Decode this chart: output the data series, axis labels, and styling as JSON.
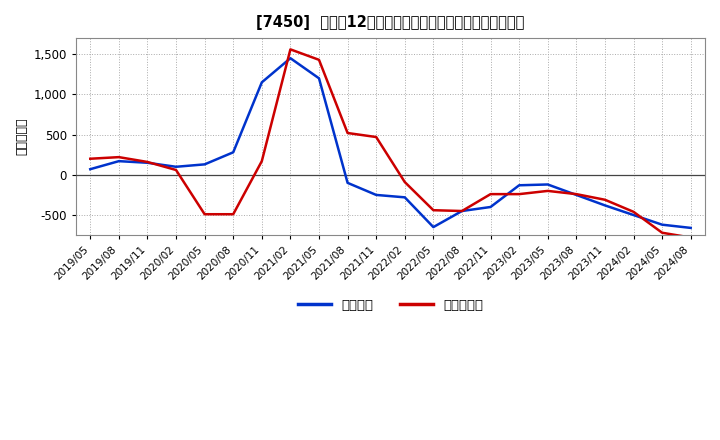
{
  "title_plain": "[7450]  利益の12か月移動合計の対前年同期増減額の推移",
  "ylabel": "（百万円）",
  "background_color": "#ffffff",
  "plot_bg_color": "#ffffff",
  "grid_color": "#aaaaaa",
  "x_labels": [
    "2019/05",
    "2019/08",
    "2019/11",
    "2020/02",
    "2020/05",
    "2020/08",
    "2020/11",
    "2021/02",
    "2021/05",
    "2021/08",
    "2021/11",
    "2022/02",
    "2022/05",
    "2022/08",
    "2022/11",
    "2023/02",
    "2023/05",
    "2023/08",
    "2023/11",
    "2024/02",
    "2024/05",
    "2024/08"
  ],
  "series_blue": {
    "label": "経常利益",
    "color": "#0033cc",
    "data": [
      [
        "2019/05",
        70
      ],
      [
        "2019/08",
        170
      ],
      [
        "2019/11",
        150
      ],
      [
        "2020/02",
        100
      ],
      [
        "2020/05",
        130
      ],
      [
        "2020/08",
        280
      ],
      [
        "2020/11",
        1150
      ],
      [
        "2021/02",
        1450
      ],
      [
        "2021/05",
        1200
      ],
      [
        "2021/08",
        -100
      ],
      [
        "2021/11",
        -250
      ],
      [
        "2022/02",
        -280
      ],
      [
        "2022/05",
        -650
      ],
      [
        "2022/08",
        -450
      ],
      [
        "2022/11",
        -400
      ],
      [
        "2023/02",
        -130
      ],
      [
        "2023/05",
        -120
      ],
      [
        "2023/08",
        -250
      ],
      [
        "2023/11",
        -380
      ],
      [
        "2024/02",
        -500
      ],
      [
        "2024/05",
        -620
      ],
      [
        "2024/08",
        -660
      ]
    ]
  },
  "series_red": {
    "label": "当期純利益",
    "color": "#cc0000",
    "data": [
      [
        "2019/05",
        200
      ],
      [
        "2019/08",
        220
      ],
      [
        "2019/11",
        160
      ],
      [
        "2020/02",
        60
      ],
      [
        "2020/05",
        -490
      ],
      [
        "2020/08",
        -490
      ],
      [
        "2020/11",
        170
      ],
      [
        "2021/02",
        1560
      ],
      [
        "2021/05",
        1430
      ],
      [
        "2021/08",
        520
      ],
      [
        "2021/11",
        470
      ],
      [
        "2022/02",
        -90
      ],
      [
        "2022/05",
        -440
      ],
      [
        "2022/08",
        -450
      ],
      [
        "2022/11",
        -240
      ],
      [
        "2023/02",
        -240
      ],
      [
        "2023/05",
        -200
      ],
      [
        "2023/08",
        -240
      ],
      [
        "2023/11",
        -310
      ],
      [
        "2024/02",
        -460
      ],
      [
        "2024/05",
        -720
      ],
      [
        "2024/08",
        -780
      ]
    ]
  },
  "ylim": [
    -750,
    1700
  ],
  "yticks": [
    -500,
    0,
    500,
    1000,
    1500
  ]
}
